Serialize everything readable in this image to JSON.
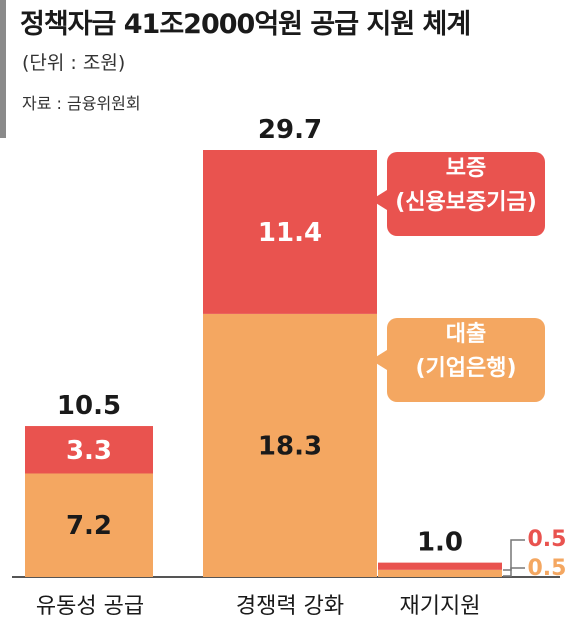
{
  "header": {
    "title": "정책자금 41조2000억원 공급 지원 체계",
    "unit": "(단위 : 조원)",
    "source": "자료 : 금융위원회"
  },
  "colors": {
    "loan": "#f4a761",
    "guarantee": "#e9534f",
    "axis": "#555555"
  },
  "callouts": {
    "guarantee": {
      "line1": "보증",
      "line2": "(신용보증기금)"
    },
    "loan": {
      "line1": "대출",
      "line2": "(기업은행)"
    }
  },
  "chart_data": {
    "type": "bar",
    "stacked": true,
    "categories": [
      "유동성 공급",
      "경쟁력 강화",
      "재기지원"
    ],
    "series": [
      {
        "name": "대출",
        "values": [
          7.2,
          18.3,
          0.5
        ]
      },
      {
        "name": "보증",
        "values": [
          3.3,
          11.4,
          0.5
        ]
      }
    ],
    "totals": [
      10.5,
      29.7,
      1.0
    ],
    "total_labels": [
      "10.5",
      "29.7",
      "1.0"
    ],
    "segment_labels": [
      [
        "7.2",
        "3.3"
      ],
      [
        "18.3",
        "11.4"
      ],
      [
        "0.5",
        "0.5"
      ]
    ],
    "ylim": [
      0,
      29.7
    ]
  }
}
